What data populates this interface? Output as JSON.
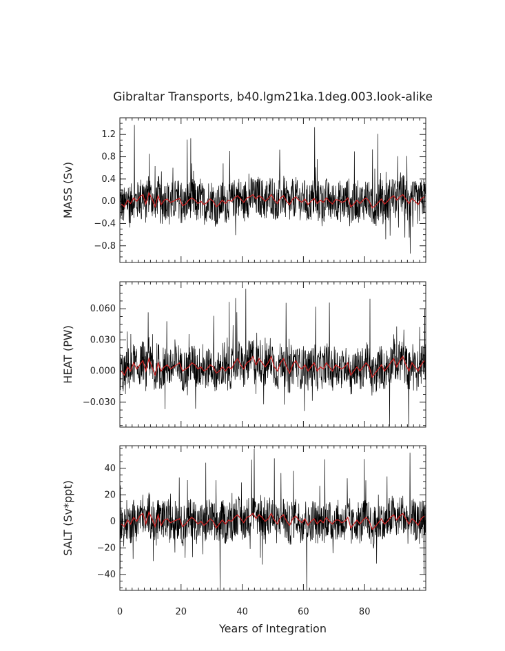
{
  "chart_data": {
    "type": "line",
    "title": "Gibraltar Transports, b40.lgm21ka.1deg.003.look-alike",
    "xlabel": "Years of Integration",
    "xlim": [
      0,
      100
    ],
    "xticks": [
      "0",
      "20",
      "40",
      "60",
      "80"
    ],
    "series_colors": {
      "monthly": "#000000",
      "annual_mean": "#cc2222"
    },
    "panels": [
      {
        "ylabel": "MASS (Sv)",
        "ylim": [
          -1.1,
          1.5
        ],
        "yticks": [
          "-0.8",
          "-0.4",
          "0.0",
          "0.4",
          "0.8",
          "1.2"
        ],
        "annual_mean": [
          -0.05,
          -0.1,
          0.02,
          -0.04,
          0.06,
          0.0,
          0.08,
          0.12,
          -0.05,
          0.15,
          0.05,
          -0.1,
          0.1,
          -0.06,
          0.02,
          0.04,
          -0.02,
          0.0,
          0.03,
          0.05,
          -0.08,
          -0.05,
          0.02,
          0.06,
          0.02,
          -0.04,
          0.0,
          -0.06,
          -0.02,
          0.04,
          0.0,
          -0.1,
          -0.05,
          0.02,
          -0.04,
          0.02,
          0.0,
          0.06,
          0.1,
          0.04,
          -0.02,
          0.06,
          0.08,
          0.12,
          0.04,
          0.1,
          0.06,
          0.0,
          0.05,
          0.12,
          0.02,
          -0.04,
          0.06,
          0.1,
          0.0,
          -0.06,
          0.04,
          0.08,
          0.02,
          -0.02,
          0.04,
          -0.06,
          0.0,
          0.05,
          -0.04,
          0.02,
          -0.02,
          0.06,
          0.0,
          -0.05,
          0.03,
          0.02,
          -0.02,
          0.0,
          0.06,
          -0.1,
          -0.05,
          0.02,
          -0.04,
          0.02,
          0.06,
          0.0,
          -0.12,
          -0.08,
          -0.02,
          0.04,
          -0.05,
          0.0,
          0.06,
          0.1,
          0.02,
          0.08,
          0.12,
          0.04,
          -0.04,
          0.05,
          0.0,
          -0.06,
          0.04,
          0.08
        ]
      },
      {
        "ylabel": "HEAT (PW)",
        "ylim": [
          -0.054,
          0.086
        ],
        "yticks": [
          "-0.030",
          "0.000",
          "0.030",
          "0.060"
        ],
        "annual_mean": [
          0.0,
          -0.004,
          0.004,
          0.0,
          0.008,
          0.002,
          0.006,
          0.01,
          0.0,
          0.012,
          0.004,
          -0.004,
          0.008,
          0.0,
          0.004,
          0.006,
          0.002,
          0.004,
          0.006,
          0.008,
          0.0,
          0.002,
          0.004,
          0.008,
          0.006,
          0.002,
          0.004,
          0.0,
          0.002,
          0.006,
          0.004,
          -0.002,
          0.0,
          0.004,
          0.0,
          0.004,
          0.002,
          0.008,
          0.012,
          0.006,
          0.002,
          0.008,
          0.01,
          0.014,
          0.006,
          0.012,
          0.008,
          0.004,
          0.008,
          0.014,
          0.004,
          0.0,
          0.008,
          0.012,
          0.004,
          -0.002,
          0.006,
          0.01,
          0.004,
          0.002,
          0.006,
          0.0,
          0.004,
          0.008,
          0.0,
          0.004,
          0.002,
          0.008,
          0.004,
          0.0,
          0.006,
          0.004,
          0.002,
          0.004,
          0.008,
          -0.004,
          0.0,
          0.004,
          0.0,
          0.004,
          0.008,
          0.004,
          -0.006,
          -0.002,
          0.002,
          0.006,
          0.0,
          0.004,
          0.008,
          0.012,
          0.004,
          0.01,
          0.014,
          0.006,
          0.0,
          0.008,
          0.004,
          0.0,
          0.006,
          0.01
        ]
      },
      {
        "ylabel": "SALT (Sv*ppt)",
        "ylim": [
          -52,
          57
        ],
        "yticks": [
          "-40",
          "-20",
          "0",
          "20",
          "40"
        ],
        "annual_mean": [
          -2,
          -4,
          1,
          -2,
          3,
          0,
          4,
          6,
          -2,
          7,
          2,
          -4,
          5,
          -3,
          1,
          2,
          -1,
          0,
          1,
          2,
          -4,
          -2,
          1,
          3,
          1,
          -2,
          0,
          -3,
          -1,
          2,
          0,
          -5,
          -2,
          1,
          -2,
          1,
          0,
          3,
          5,
          2,
          -1,
          3,
          4,
          6,
          2,
          5,
          3,
          0,
          2,
          6,
          1,
          -2,
          3,
          5,
          0,
          -3,
          2,
          4,
          1,
          -1,
          2,
          -3,
          0,
          2,
          -2,
          1,
          -1,
          3,
          0,
          -2,
          1,
          1,
          -1,
          0,
          3,
          -5,
          -2,
          1,
          -2,
          1,
          3,
          0,
          -6,
          -4,
          -1,
          2,
          -2,
          0,
          3,
          5,
          1,
          4,
          6,
          2,
          -2,
          2,
          0,
          -3,
          2,
          4
        ]
      }
    ]
  }
}
